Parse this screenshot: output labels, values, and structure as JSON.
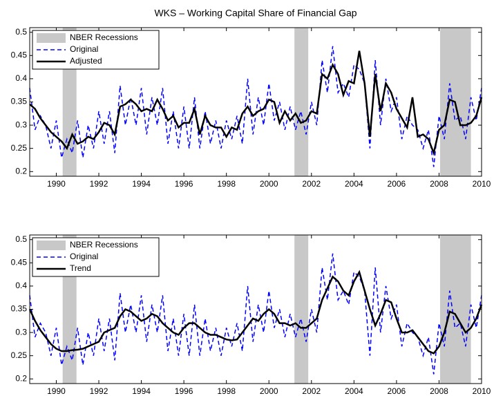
{
  "chart_data": [
    {
      "type": "line",
      "title": "WKS – Working Capital Share of Financial Gap",
      "x": [
        1988.75,
        1989,
        1989.25,
        1989.5,
        1989.75,
        1990,
        1990.25,
        1990.5,
        1990.75,
        1991,
        1991.25,
        1991.5,
        1991.75,
        1992,
        1992.25,
        1992.5,
        1992.75,
        1993,
        1993.25,
        1993.5,
        1993.75,
        1994,
        1994.25,
        1994.5,
        1994.75,
        1995,
        1995.25,
        1995.5,
        1995.75,
        1996,
        1996.25,
        1996.5,
        1996.75,
        1997,
        1997.25,
        1997.5,
        1997.75,
        1998,
        1998.25,
        1998.5,
        1998.75,
        1999,
        1999.25,
        1999.5,
        1999.75,
        2000,
        2000.25,
        2000.5,
        2000.75,
        2001,
        2001.25,
        2001.5,
        2001.75,
        2002,
        2002.25,
        2002.5,
        2002.75,
        2003,
        2003.25,
        2003.5,
        2003.75,
        2004,
        2004.25,
        2004.5,
        2004.75,
        2005,
        2005.25,
        2005.5,
        2005.75,
        2006,
        2006.25,
        2006.5,
        2006.75,
        2007,
        2007.25,
        2007.5,
        2007.75,
        2008,
        2008.25,
        2008.5,
        2008.75,
        2009,
        2009.25,
        2009.5,
        2009.75,
        2010
      ],
      "series": [
        {
          "name": "Original",
          "color": "#0000ff",
          "dash": true,
          "values": [
            0.38,
            0.29,
            0.32,
            0.3,
            0.25,
            0.31,
            0.23,
            0.27,
            0.24,
            0.31,
            0.23,
            0.3,
            0.25,
            0.33,
            0.26,
            0.33,
            0.24,
            0.385,
            0.3,
            0.36,
            0.3,
            0.38,
            0.28,
            0.36,
            0.3,
            0.38,
            0.26,
            0.33,
            0.25,
            0.34,
            0.25,
            0.36,
            0.25,
            0.33,
            0.26,
            0.31,
            0.25,
            0.31,
            0.27,
            0.32,
            0.26,
            0.4,
            0.28,
            0.36,
            0.3,
            0.39,
            0.31,
            0.35,
            0.29,
            0.34,
            0.29,
            0.33,
            0.28,
            0.35,
            0.3,
            0.44,
            0.37,
            0.47,
            0.37,
            0.39,
            0.36,
            0.43,
            0.42,
            0.39,
            0.25,
            0.44,
            0.3,
            0.4,
            0.33,
            0.36,
            0.27,
            0.32,
            0.3,
            0.29,
            0.25,
            0.29,
            0.21,
            0.32,
            0.27,
            0.39,
            0.31,
            0.32,
            0.27,
            0.36,
            0.31,
            0.38
          ]
        },
        {
          "name": "Adjusted",
          "color": "#000000",
          "dash": false,
          "values": [
            0.345,
            0.335,
            0.315,
            0.3,
            0.285,
            0.275,
            0.265,
            0.25,
            0.28,
            0.26,
            0.265,
            0.275,
            0.27,
            0.285,
            0.305,
            0.3,
            0.28,
            0.34,
            0.345,
            0.355,
            0.345,
            0.33,
            0.335,
            0.33,
            0.355,
            0.335,
            0.31,
            0.32,
            0.295,
            0.305,
            0.305,
            0.335,
            0.28,
            0.32,
            0.3,
            0.295,
            0.295,
            0.275,
            0.295,
            0.29,
            0.325,
            0.34,
            0.32,
            0.33,
            0.335,
            0.355,
            0.35,
            0.305,
            0.33,
            0.31,
            0.325,
            0.305,
            0.31,
            0.33,
            0.325,
            0.41,
            0.4,
            0.43,
            0.41,
            0.365,
            0.395,
            0.39,
            0.46,
            0.39,
            0.275,
            0.41,
            0.33,
            0.39,
            0.37,
            0.335,
            0.315,
            0.295,
            0.36,
            0.275,
            0.28,
            0.27,
            0.24,
            0.29,
            0.3,
            0.355,
            0.35,
            0.3,
            0.3,
            0.305,
            0.32,
            0.36
          ]
        }
      ],
      "recessions": {
        "name": "NBER Recessions",
        "color": "#c8c8c8",
        "ranges": [
          [
            1990.3,
            1990.95
          ],
          [
            2001.2,
            2001.85
          ],
          [
            2008.05,
            2009.5
          ]
        ]
      },
      "xlim": [
        1988.75,
        2010
      ],
      "xticks": [
        1990,
        1992,
        1994,
        1996,
        1998,
        2000,
        2002,
        2004,
        2006,
        2008,
        2010
      ],
      "ylim": [
        0.19,
        0.51
      ],
      "yticks": [
        0.2,
        0.25,
        0.3,
        0.35,
        0.4,
        0.45,
        0.5
      ],
      "legend": "upper left"
    },
    {
      "type": "line",
      "x": [
        1988.75,
        1989,
        1989.25,
        1989.5,
        1989.75,
        1990,
        1990.25,
        1990.5,
        1990.75,
        1991,
        1991.25,
        1991.5,
        1991.75,
        1992,
        1992.25,
        1992.5,
        1992.75,
        1993,
        1993.25,
        1993.5,
        1993.75,
        1994,
        1994.25,
        1994.5,
        1994.75,
        1995,
        1995.25,
        1995.5,
        1995.75,
        1996,
        1996.25,
        1996.5,
        1996.75,
        1997,
        1997.25,
        1997.5,
        1997.75,
        1998,
        1998.25,
        1998.5,
        1998.75,
        1999,
        1999.25,
        1999.5,
        1999.75,
        2000,
        2000.25,
        2000.5,
        2000.75,
        2001,
        2001.25,
        2001.5,
        2001.75,
        2002,
        2002.25,
        2002.5,
        2002.75,
        2003,
        2003.25,
        2003.5,
        2003.75,
        2004,
        2004.25,
        2004.5,
        2004.75,
        2005,
        2005.25,
        2005.5,
        2005.75,
        2006,
        2006.25,
        2006.5,
        2006.75,
        2007,
        2007.25,
        2007.5,
        2007.75,
        2008,
        2008.25,
        2008.5,
        2008.75,
        2009,
        2009.25,
        2009.5,
        2009.75,
        2010
      ],
      "series": [
        {
          "name": "Original",
          "color": "#0000ff",
          "dash": true,
          "values": [
            0.38,
            0.29,
            0.32,
            0.3,
            0.25,
            0.31,
            0.23,
            0.27,
            0.24,
            0.31,
            0.23,
            0.3,
            0.25,
            0.33,
            0.26,
            0.33,
            0.24,
            0.385,
            0.3,
            0.36,
            0.3,
            0.38,
            0.28,
            0.36,
            0.3,
            0.38,
            0.26,
            0.33,
            0.25,
            0.34,
            0.25,
            0.36,
            0.25,
            0.33,
            0.26,
            0.31,
            0.25,
            0.31,
            0.27,
            0.32,
            0.26,
            0.4,
            0.28,
            0.36,
            0.3,
            0.39,
            0.31,
            0.35,
            0.29,
            0.34,
            0.29,
            0.33,
            0.28,
            0.35,
            0.3,
            0.44,
            0.37,
            0.47,
            0.37,
            0.39,
            0.36,
            0.43,
            0.42,
            0.39,
            0.25,
            0.44,
            0.3,
            0.4,
            0.33,
            0.36,
            0.27,
            0.32,
            0.3,
            0.29,
            0.25,
            0.29,
            0.21,
            0.32,
            0.27,
            0.39,
            0.31,
            0.32,
            0.27,
            0.36,
            0.31,
            0.38
          ]
        },
        {
          "name": "Trend",
          "color": "#000000",
          "dash": false,
          "values": [
            0.35,
            0.325,
            0.305,
            0.29,
            0.275,
            0.265,
            0.26,
            0.26,
            0.262,
            0.263,
            0.265,
            0.27,
            0.275,
            0.28,
            0.3,
            0.305,
            0.31,
            0.335,
            0.35,
            0.345,
            0.335,
            0.325,
            0.33,
            0.34,
            0.335,
            0.32,
            0.31,
            0.3,
            0.295,
            0.31,
            0.32,
            0.32,
            0.31,
            0.3,
            0.295,
            0.295,
            0.29,
            0.285,
            0.283,
            0.285,
            0.3,
            0.315,
            0.33,
            0.325,
            0.34,
            0.35,
            0.34,
            0.32,
            0.32,
            0.315,
            0.32,
            0.31,
            0.31,
            0.32,
            0.33,
            0.37,
            0.395,
            0.42,
            0.41,
            0.39,
            0.38,
            0.41,
            0.43,
            0.39,
            0.35,
            0.315,
            0.34,
            0.37,
            0.365,
            0.33,
            0.3,
            0.3,
            0.305,
            0.29,
            0.275,
            0.26,
            0.255,
            0.27,
            0.3,
            0.345,
            0.34,
            0.32,
            0.3,
            0.31,
            0.33,
            0.36
          ]
        }
      ],
      "recessions": {
        "name": "NBER Recessions",
        "color": "#c8c8c8",
        "ranges": [
          [
            1990.3,
            1990.95
          ],
          [
            2001.2,
            2001.85
          ],
          [
            2008.05,
            2009.5
          ]
        ]
      },
      "xlim": [
        1988.75,
        2010
      ],
      "xticks": [
        1990,
        1992,
        1994,
        1996,
        1998,
        2000,
        2002,
        2004,
        2006,
        2008,
        2010
      ],
      "ylim": [
        0.19,
        0.51
      ],
      "yticks": [
        0.2,
        0.25,
        0.3,
        0.35,
        0.4,
        0.45,
        0.5
      ],
      "legend": "upper left"
    }
  ]
}
